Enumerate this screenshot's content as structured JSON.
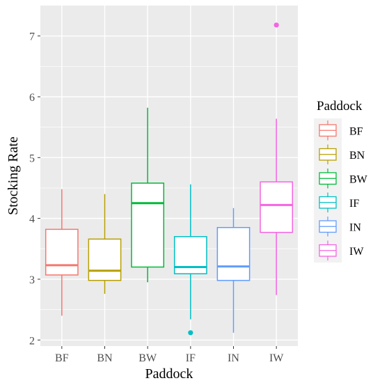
{
  "chart_data": {
    "type": "box",
    "title": "",
    "xlabel": "Paddock",
    "ylabel": "Stocking Rate",
    "ylim": [
      1.9,
      7.5
    ],
    "yticks": [
      2,
      3,
      4,
      5,
      6,
      7
    ],
    "categories": [
      "BF",
      "BN",
      "BW",
      "IF",
      "IN",
      "IW"
    ],
    "series": [
      {
        "name": "BF",
        "color": "#F8766D",
        "min": 2.4,
        "q1": 3.07,
        "median": 3.23,
        "q3": 3.82,
        "max": 4.48,
        "outliers": []
      },
      {
        "name": "BN",
        "color": "#B79F00",
        "min": 2.76,
        "q1": 2.98,
        "median": 3.14,
        "q3": 3.66,
        "max": 4.4,
        "outliers": []
      },
      {
        "name": "BW",
        "color": "#00BA38",
        "min": 2.95,
        "q1": 3.2,
        "median": 4.25,
        "q3": 4.58,
        "max": 5.82,
        "outliers": []
      },
      {
        "name": "IF",
        "color": "#00BFC4",
        "min": 2.34,
        "q1": 3.09,
        "median": 3.2,
        "q3": 3.7,
        "max": 4.56,
        "outliers": [
          2.12
        ]
      },
      {
        "name": "IN",
        "color": "#619CFF",
        "min": 2.12,
        "q1": 2.98,
        "median": 3.21,
        "q3": 3.85,
        "max": 4.17,
        "outliers": []
      },
      {
        "name": "IW",
        "color": "#F564E3",
        "min": 2.74,
        "q1": 3.77,
        "median": 4.22,
        "q3": 4.6,
        "max": 5.64,
        "outliers": [
          7.18
        ]
      }
    ],
    "grid": true,
    "legend": {
      "title": "Paddock",
      "position": "right"
    }
  }
}
